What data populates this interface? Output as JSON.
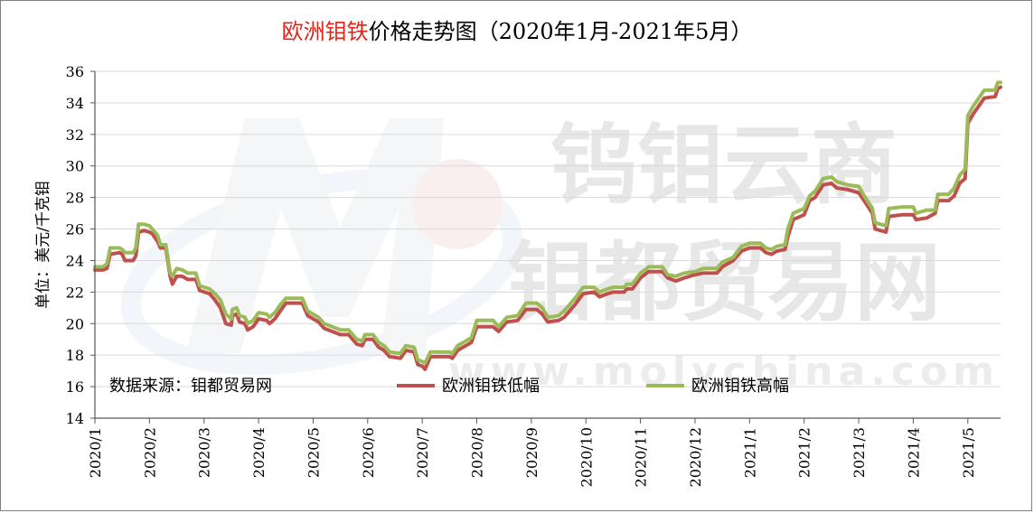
{
  "chart_data": {
    "type": "line",
    "title": {
      "highlight": "欧洲钼铁",
      "highlight_color": "#e2231a",
      "rest": "价格走势图（2020年1月-2021年5月）"
    },
    "ylabel": "单位：美元/千克钼",
    "ylim": [
      14,
      36
    ],
    "yticks": [
      14,
      16,
      18,
      20,
      22,
      24,
      26,
      28,
      30,
      32,
      34,
      36
    ],
    "grid": true,
    "x_range": [
      0,
      16.6
    ],
    "xticks": [
      {
        "x": 0,
        "label": "2020/1"
      },
      {
        "x": 1,
        "label": "2020/2"
      },
      {
        "x": 2,
        "label": "2020/3"
      },
      {
        "x": 3,
        "label": "2020/4"
      },
      {
        "x": 4,
        "label": "2020/5"
      },
      {
        "x": 5,
        "label": "2020/6"
      },
      {
        "x": 6,
        "label": "2020/7"
      },
      {
        "x": 7,
        "label": "2020/8"
      },
      {
        "x": 8,
        "label": "2020/9"
      },
      {
        "x": 9,
        "label": "2020/10"
      },
      {
        "x": 10,
        "label": "2020/11"
      },
      {
        "x": 11,
        "label": "2020/12"
      },
      {
        "x": 12,
        "label": "2021/1"
      },
      {
        "x": 13,
        "label": "2021/2"
      },
      {
        "x": 14,
        "label": "2021/3"
      },
      {
        "x": 15,
        "label": "2021/4"
      },
      {
        "x": 16,
        "label": "2021/5"
      }
    ],
    "source_label": "数据来源：钼都贸易网",
    "legend_position": "bottom",
    "series": [
      {
        "name": "欧洲钼铁低幅",
        "color": "#c0504d",
        "points": [
          [
            0.0,
            23.4
          ],
          [
            0.15,
            23.4
          ],
          [
            0.22,
            23.5
          ],
          [
            0.28,
            24.4
          ],
          [
            0.45,
            24.5
          ],
          [
            0.5,
            24.4
          ],
          [
            0.55,
            24.0
          ],
          [
            0.7,
            24.0
          ],
          [
            0.75,
            24.3
          ],
          [
            0.8,
            25.8
          ],
          [
            0.9,
            25.9
          ],
          [
            1.0,
            25.8
          ],
          [
            1.05,
            25.7
          ],
          [
            1.15,
            25.2
          ],
          [
            1.2,
            24.8
          ],
          [
            1.3,
            24.8
          ],
          [
            1.38,
            23.0
          ],
          [
            1.42,
            22.5
          ],
          [
            1.5,
            23.0
          ],
          [
            1.6,
            23.0
          ],
          [
            1.7,
            22.8
          ],
          [
            1.85,
            22.8
          ],
          [
            1.92,
            22.1
          ],
          [
            2.1,
            21.9
          ],
          [
            2.2,
            21.5
          ],
          [
            2.3,
            21.0
          ],
          [
            2.4,
            20.0
          ],
          [
            2.5,
            19.9
          ],
          [
            2.52,
            20.5
          ],
          [
            2.6,
            20.6
          ],
          [
            2.65,
            20.1
          ],
          [
            2.75,
            20.0
          ],
          [
            2.8,
            19.6
          ],
          [
            2.9,
            19.8
          ],
          [
            3.0,
            20.3
          ],
          [
            3.15,
            20.2
          ],
          [
            3.2,
            20.0
          ],
          [
            3.3,
            20.3
          ],
          [
            3.4,
            20.8
          ],
          [
            3.5,
            21.3
          ],
          [
            3.8,
            21.3
          ],
          [
            3.9,
            20.5
          ],
          [
            4.0,
            20.3
          ],
          [
            4.1,
            20.1
          ],
          [
            4.2,
            19.7
          ],
          [
            4.35,
            19.5
          ],
          [
            4.5,
            19.3
          ],
          [
            4.65,
            19.3
          ],
          [
            4.8,
            18.7
          ],
          [
            4.9,
            18.6
          ],
          [
            4.95,
            19.0
          ],
          [
            5.1,
            19.0
          ],
          [
            5.2,
            18.5
          ],
          [
            5.3,
            18.3
          ],
          [
            5.4,
            17.9
          ],
          [
            5.6,
            17.8
          ],
          [
            5.7,
            18.3
          ],
          [
            5.85,
            18.2
          ],
          [
            5.92,
            17.4
          ],
          [
            6.0,
            17.3
          ],
          [
            6.05,
            17.1
          ],
          [
            6.15,
            17.9
          ],
          [
            6.5,
            17.9
          ],
          [
            6.55,
            17.8
          ],
          [
            6.65,
            18.3
          ],
          [
            6.8,
            18.6
          ],
          [
            6.9,
            18.8
          ],
          [
            7.0,
            19.8
          ],
          [
            7.3,
            19.8
          ],
          [
            7.4,
            19.5
          ],
          [
            7.55,
            20.1
          ],
          [
            7.75,
            20.2
          ],
          [
            7.9,
            20.9
          ],
          [
            8.1,
            20.9
          ],
          [
            8.2,
            20.6
          ],
          [
            8.3,
            20.1
          ],
          [
            8.5,
            20.2
          ],
          [
            8.6,
            20.4
          ],
          [
            8.8,
            21.2
          ],
          [
            8.95,
            21.9
          ],
          [
            9.15,
            22.0
          ],
          [
            9.25,
            21.7
          ],
          [
            9.4,
            21.9
          ],
          [
            9.5,
            22.0
          ],
          [
            9.7,
            22.0
          ],
          [
            9.75,
            22.2
          ],
          [
            9.85,
            22.2
          ],
          [
            10.0,
            22.9
          ],
          [
            10.15,
            23.3
          ],
          [
            10.4,
            23.3
          ],
          [
            10.5,
            22.9
          ],
          [
            10.65,
            22.7
          ],
          [
            10.8,
            22.9
          ],
          [
            11.0,
            23.1
          ],
          [
            11.15,
            23.2
          ],
          [
            11.4,
            23.2
          ],
          [
            11.5,
            23.6
          ],
          [
            11.7,
            24.0
          ],
          [
            11.85,
            24.6
          ],
          [
            12.0,
            24.8
          ],
          [
            12.2,
            24.8
          ],
          [
            12.3,
            24.5
          ],
          [
            12.4,
            24.4
          ],
          [
            12.5,
            24.6
          ],
          [
            12.65,
            24.7
          ],
          [
            12.7,
            25.5
          ],
          [
            12.8,
            26.6
          ],
          [
            13.0,
            26.9
          ],
          [
            13.1,
            27.8
          ],
          [
            13.2,
            28.0
          ],
          [
            13.35,
            28.8
          ],
          [
            13.5,
            28.9
          ],
          [
            13.6,
            28.6
          ],
          [
            13.8,
            28.5
          ],
          [
            14.0,
            28.3
          ],
          [
            14.1,
            27.8
          ],
          [
            14.25,
            27.0
          ],
          [
            14.3,
            26.0
          ],
          [
            14.5,
            25.8
          ],
          [
            14.55,
            26.8
          ],
          [
            14.8,
            26.9
          ],
          [
            15.0,
            26.9
          ],
          [
            15.05,
            26.6
          ],
          [
            15.25,
            26.7
          ],
          [
            15.4,
            27.0
          ],
          [
            15.45,
            27.8
          ],
          [
            15.65,
            27.8
          ],
          [
            15.75,
            28.1
          ],
          [
            15.85,
            28.9
          ],
          [
            15.95,
            29.2
          ],
          [
            16.0,
            32.7
          ],
          [
            16.1,
            33.3
          ],
          [
            16.2,
            33.8
          ],
          [
            16.3,
            34.3
          ],
          [
            16.5,
            34.4
          ],
          [
            16.55,
            34.9
          ],
          [
            16.6,
            35.0
          ]
        ]
      },
      {
        "name": "欧洲钼铁高幅",
        "color": "#9bbb59",
        "points": [
          [
            0.0,
            23.6
          ],
          [
            0.15,
            23.6
          ],
          [
            0.22,
            23.8
          ],
          [
            0.28,
            24.8
          ],
          [
            0.45,
            24.8
          ],
          [
            0.5,
            24.7
          ],
          [
            0.55,
            24.5
          ],
          [
            0.7,
            24.5
          ],
          [
            0.75,
            24.8
          ],
          [
            0.8,
            26.3
          ],
          [
            0.9,
            26.3
          ],
          [
            1.0,
            26.2
          ],
          [
            1.05,
            26.0
          ],
          [
            1.15,
            25.6
          ],
          [
            1.2,
            25.0
          ],
          [
            1.3,
            25.0
          ],
          [
            1.38,
            23.2
          ],
          [
            1.42,
            23.0
          ],
          [
            1.5,
            23.5
          ],
          [
            1.6,
            23.4
          ],
          [
            1.7,
            23.2
          ],
          [
            1.85,
            23.2
          ],
          [
            1.92,
            22.4
          ],
          [
            2.1,
            22.2
          ],
          [
            2.2,
            21.9
          ],
          [
            2.3,
            21.5
          ],
          [
            2.4,
            20.6
          ],
          [
            2.5,
            20.3
          ],
          [
            2.52,
            20.9
          ],
          [
            2.6,
            21.0
          ],
          [
            2.65,
            20.5
          ],
          [
            2.75,
            20.4
          ],
          [
            2.8,
            20.0
          ],
          [
            2.9,
            20.2
          ],
          [
            3.0,
            20.7
          ],
          [
            3.15,
            20.6
          ],
          [
            3.2,
            20.4
          ],
          [
            3.3,
            20.7
          ],
          [
            3.4,
            21.2
          ],
          [
            3.5,
            21.6
          ],
          [
            3.8,
            21.6
          ],
          [
            3.9,
            20.8
          ],
          [
            4.0,
            20.6
          ],
          [
            4.1,
            20.4
          ],
          [
            4.2,
            20.0
          ],
          [
            4.35,
            19.8
          ],
          [
            4.5,
            19.6
          ],
          [
            4.65,
            19.6
          ],
          [
            4.8,
            19.0
          ],
          [
            4.9,
            18.9
          ],
          [
            4.95,
            19.3
          ],
          [
            5.1,
            19.3
          ],
          [
            5.2,
            18.8
          ],
          [
            5.3,
            18.6
          ],
          [
            5.4,
            18.2
          ],
          [
            5.6,
            18.1
          ],
          [
            5.7,
            18.6
          ],
          [
            5.85,
            18.5
          ],
          [
            5.92,
            17.7
          ],
          [
            6.0,
            17.6
          ],
          [
            6.05,
            17.5
          ],
          [
            6.15,
            18.2
          ],
          [
            6.5,
            18.2
          ],
          [
            6.55,
            18.1
          ],
          [
            6.65,
            18.6
          ],
          [
            6.8,
            18.9
          ],
          [
            6.9,
            19.1
          ],
          [
            7.0,
            20.2
          ],
          [
            7.3,
            20.2
          ],
          [
            7.4,
            19.8
          ],
          [
            7.55,
            20.4
          ],
          [
            7.75,
            20.5
          ],
          [
            7.9,
            21.3
          ],
          [
            8.1,
            21.3
          ],
          [
            8.2,
            21.0
          ],
          [
            8.3,
            20.4
          ],
          [
            8.5,
            20.5
          ],
          [
            8.6,
            20.8
          ],
          [
            8.8,
            21.6
          ],
          [
            8.95,
            22.3
          ],
          [
            9.15,
            22.3
          ],
          [
            9.25,
            22.0
          ],
          [
            9.4,
            22.2
          ],
          [
            9.5,
            22.3
          ],
          [
            9.7,
            22.3
          ],
          [
            9.75,
            22.5
          ],
          [
            9.85,
            22.5
          ],
          [
            10.0,
            23.2
          ],
          [
            10.15,
            23.6
          ],
          [
            10.4,
            23.6
          ],
          [
            10.5,
            23.1
          ],
          [
            10.65,
            23.0
          ],
          [
            10.8,
            23.2
          ],
          [
            11.0,
            23.3
          ],
          [
            11.15,
            23.5
          ],
          [
            11.4,
            23.5
          ],
          [
            11.5,
            23.9
          ],
          [
            11.7,
            24.2
          ],
          [
            11.85,
            24.9
          ],
          [
            12.0,
            25.1
          ],
          [
            12.2,
            25.1
          ],
          [
            12.3,
            24.8
          ],
          [
            12.4,
            24.7
          ],
          [
            12.5,
            24.9
          ],
          [
            12.65,
            25.0
          ],
          [
            12.7,
            26.0
          ],
          [
            12.8,
            27.0
          ],
          [
            13.0,
            27.3
          ],
          [
            13.1,
            28.1
          ],
          [
            13.2,
            28.4
          ],
          [
            13.35,
            29.2
          ],
          [
            13.5,
            29.3
          ],
          [
            13.6,
            29.0
          ],
          [
            13.8,
            28.8
          ],
          [
            14.0,
            28.7
          ],
          [
            14.1,
            28.1
          ],
          [
            14.25,
            27.3
          ],
          [
            14.3,
            26.4
          ],
          [
            14.5,
            26.2
          ],
          [
            14.55,
            27.3
          ],
          [
            14.8,
            27.4
          ],
          [
            15.0,
            27.4
          ],
          [
            15.05,
            27.0
          ],
          [
            15.25,
            27.2
          ],
          [
            15.4,
            27.2
          ],
          [
            15.45,
            28.2
          ],
          [
            15.65,
            28.2
          ],
          [
            15.75,
            28.6
          ],
          [
            15.85,
            29.4
          ],
          [
            15.95,
            29.8
          ],
          [
            16.0,
            33.2
          ],
          [
            16.1,
            33.8
          ],
          [
            16.2,
            34.3
          ],
          [
            16.3,
            34.8
          ],
          [
            16.5,
            34.8
          ],
          [
            16.55,
            35.3
          ],
          [
            16.6,
            35.3
          ]
        ]
      }
    ]
  }
}
